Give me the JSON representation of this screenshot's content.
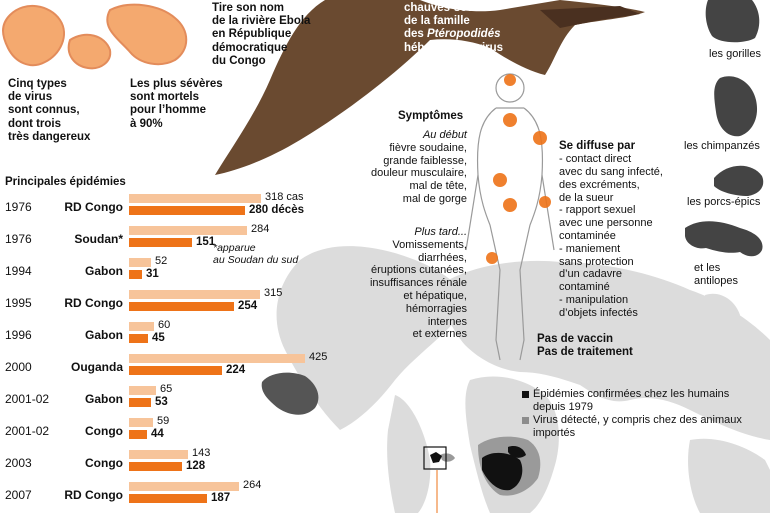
{
  "header": {
    "virus_types": [
      "Cinq types",
      "de virus",
      "sont connus,",
      "dont trois",
      "très dangereux"
    ],
    "severe": [
      "Les plus sévères",
      "sont mortels",
      "pour l’homme",
      "à 90%"
    ],
    "name_origin": [
      "Tire son nom",
      "de la rivière Ebola",
      "en République",
      "démocratique",
      "du Congo"
    ],
    "bats": {
      "line1": "chauves-souris",
      "line2": "de la famille",
      "line3_pre": "des ",
      "line3_em": "Ptéropodidés",
      "line4": "hébergent le virus"
    }
  },
  "animals": {
    "gorillas": "les gorilles",
    "chimps": "les chimpanzés",
    "porcupines": "les porcs-épics",
    "antelopes": [
      "et les",
      "antilopes"
    ]
  },
  "symptoms": {
    "title": "Symptômes",
    "early_label": "Au début",
    "early": [
      "fièvre soudaine,",
      "grande faiblesse,",
      "douleur musculaire,",
      "mal de tête,",
      "mal de gorge"
    ],
    "later_label": "Plus tard...",
    "later": [
      "Vomissements,",
      "diarrhées,",
      "éruptions cutanées,",
      "insuffisances rénale",
      "et hépatique,",
      "hémorragies",
      "internes",
      "et externes"
    ]
  },
  "spread": {
    "title": "Se diffuse par",
    "items": [
      "- contact direct",
      "avec du sang infecté,",
      "des excréments,",
      "de la sueur",
      "- rapport sexuel",
      "avec une personne",
      "contaminée",
      "- maniement",
      "sans protection",
      "d’un cadavre",
      "contaminé",
      "- manipulation",
      "d’objets infectés"
    ]
  },
  "vaccine": {
    "line1": "Pas de vaccin",
    "line2": "Pas de traitement"
  },
  "legend": {
    "confirmed": [
      "Épidémies confirmées chez les humains",
      "depuis 1979"
    ],
    "detected": [
      "Virus détecté, y compris chez des animaux",
      "importés"
    ],
    "colors": {
      "confirmed": "#111111",
      "detected": "#8c8c8c",
      "map": "#dcdcdc"
    }
  },
  "note": [
    "*apparue",
    "au Soudan du sud"
  ],
  "epidemics_title": "Principales épidémies",
  "colors": {
    "cases": "#f7c49a",
    "deaths": "#ee7318",
    "accent": "#ee7318"
  },
  "chart_data": {
    "type": "bar",
    "title": "Principales épidémies",
    "series_labels": {
      "cases": "cas",
      "deaths": "décès"
    },
    "rows": [
      {
        "year": "1976",
        "country": "RD Congo",
        "cases": 318,
        "deaths": 280
      },
      {
        "year": "1976",
        "country": "Soudan*",
        "cases": 284,
        "deaths": 151
      },
      {
        "year": "1994",
        "country": "Gabon",
        "cases": 52,
        "deaths": 31
      },
      {
        "year": "1995",
        "country": "RD Congo",
        "cases": 315,
        "deaths": 254
      },
      {
        "year": "1996",
        "country": "Gabon",
        "cases": 60,
        "deaths": 45
      },
      {
        "year": "2000",
        "country": "Ouganda",
        "cases": 425,
        "deaths": 224
      },
      {
        "year": "2001-02",
        "country": "Gabon",
        "cases": 65,
        "deaths": 53
      },
      {
        "year": "2001-02",
        "country": "Congo",
        "cases": 59,
        "deaths": 44
      },
      {
        "year": "2003",
        "country": "Congo",
        "cases": 143,
        "deaths": 128
      },
      {
        "year": "2007",
        "country": "RD Congo",
        "cases": 264,
        "deaths": 187
      }
    ]
  }
}
